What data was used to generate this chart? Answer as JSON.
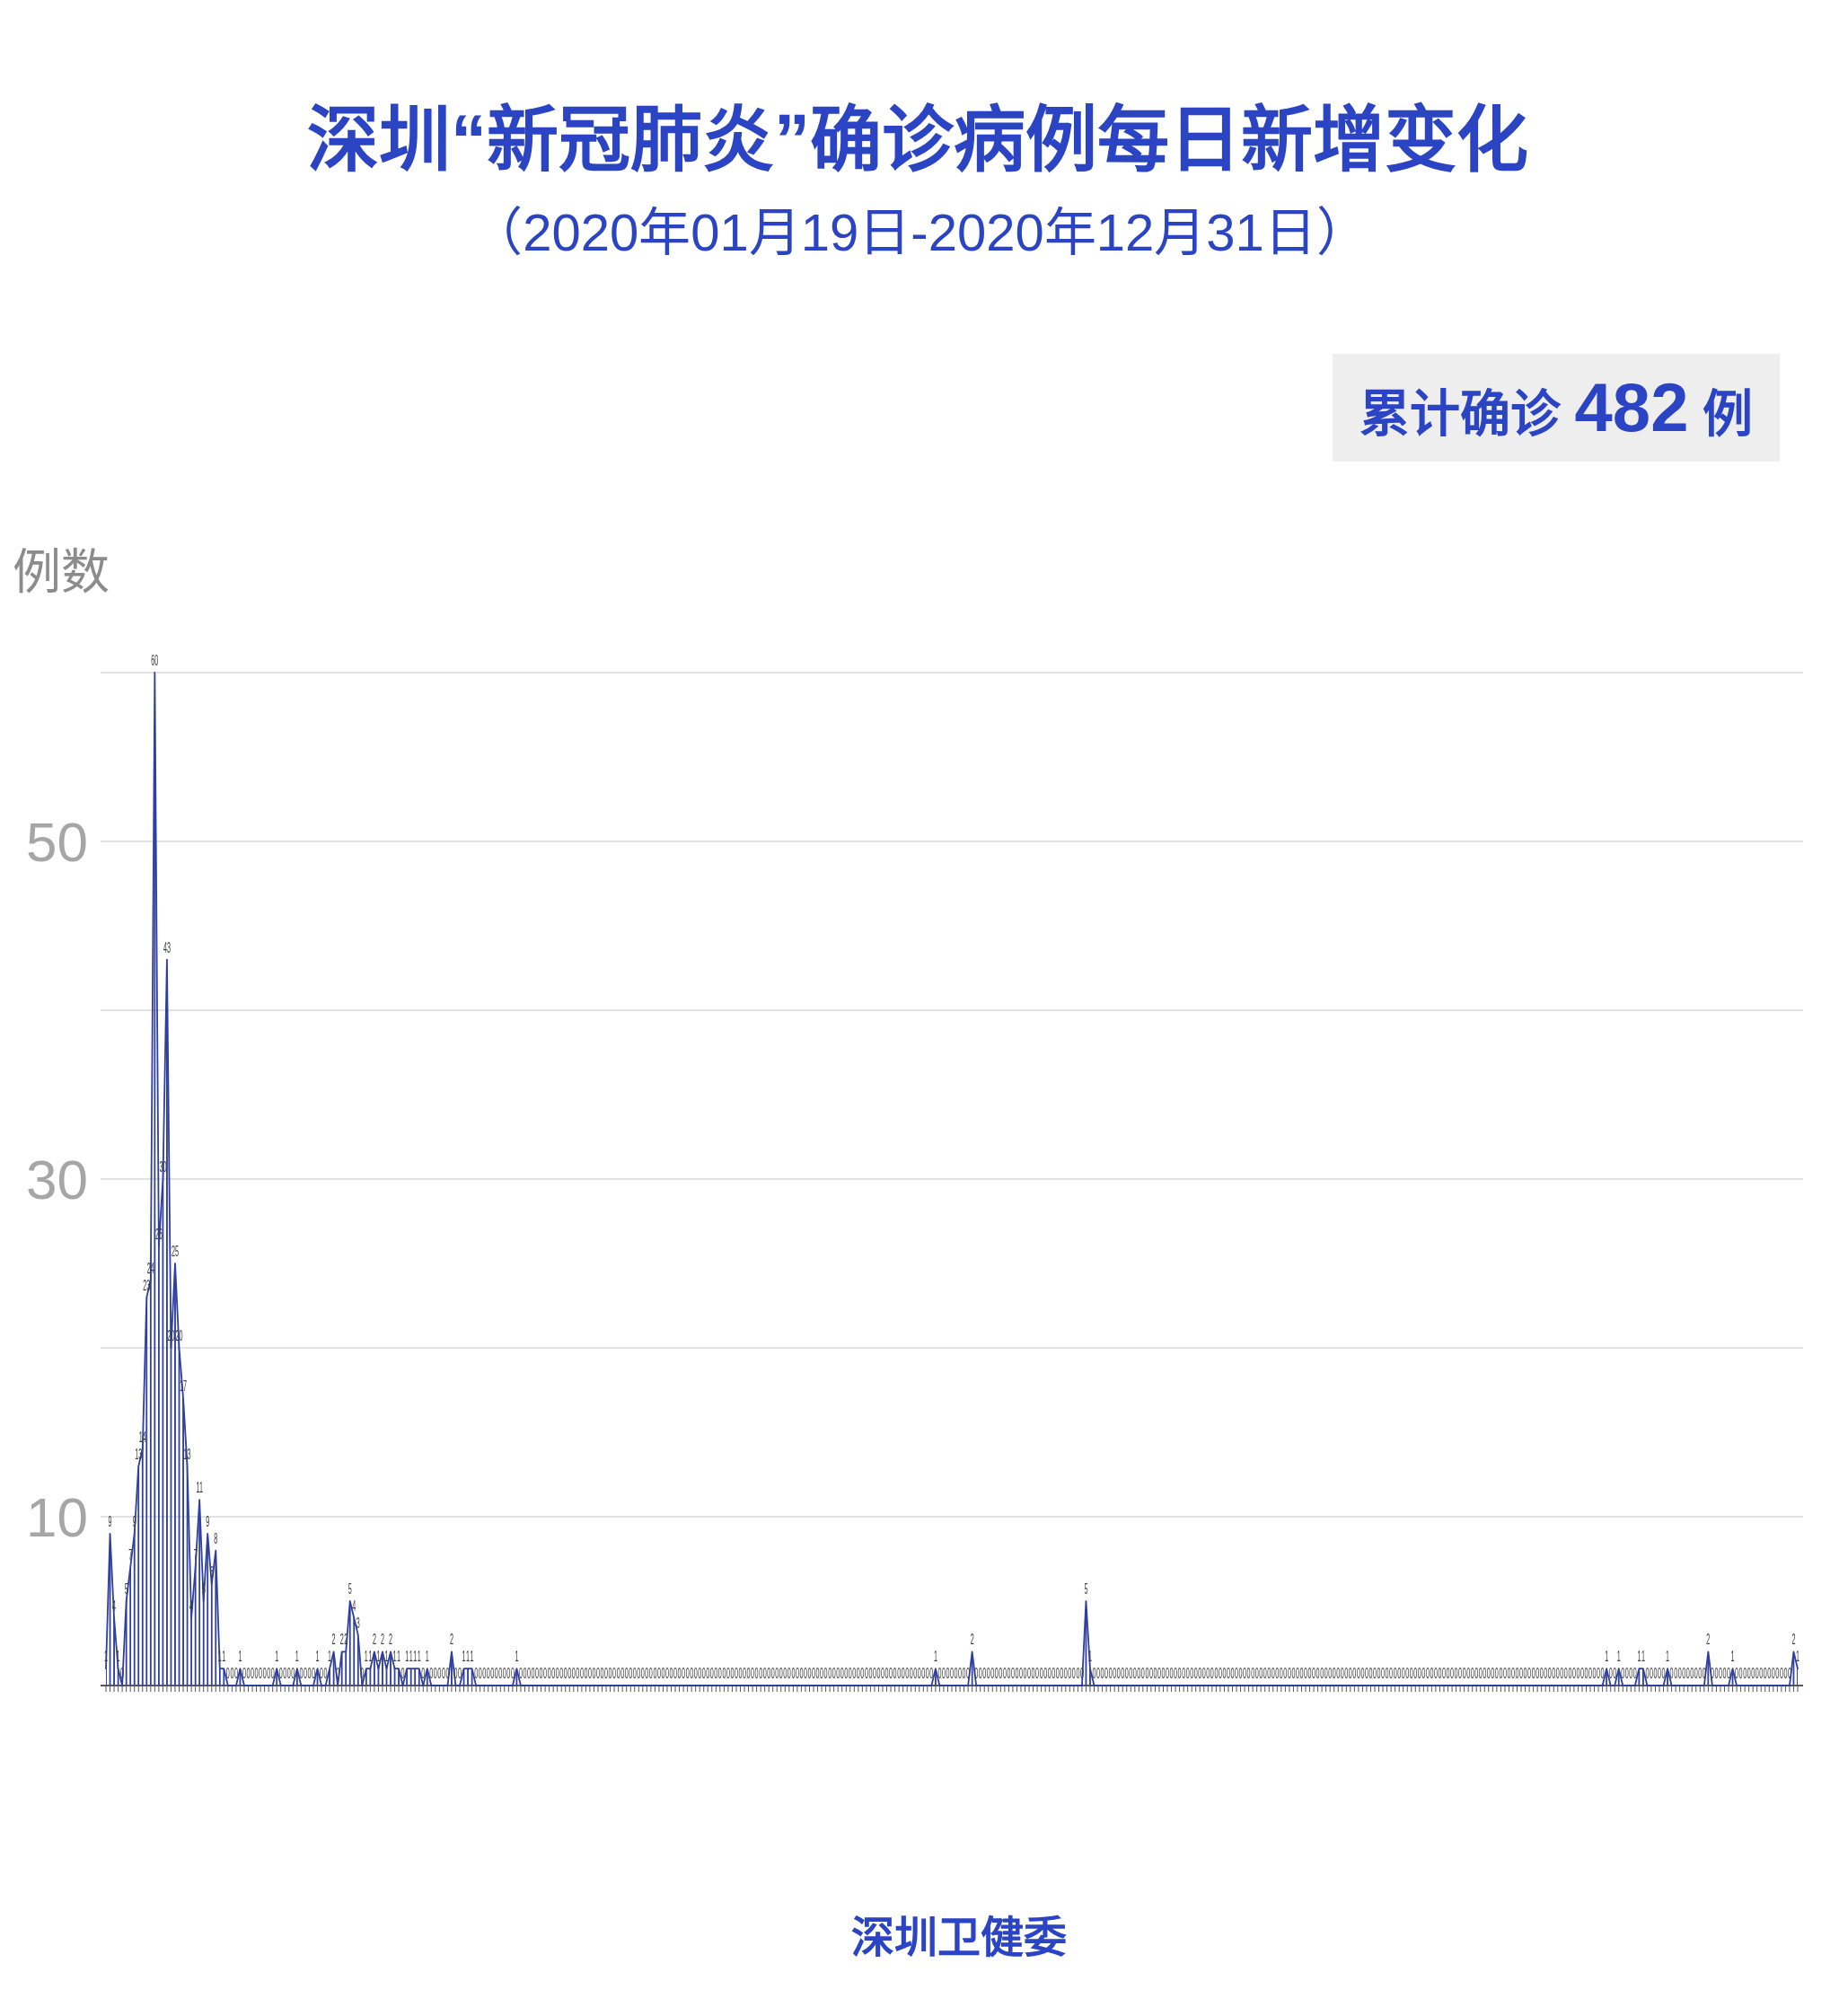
{
  "chart_data": {
    "type": "area",
    "title": "深圳“新冠肺炎”确诊病例每日新增变化",
    "subtitle": "（2020年01月19日-2020年12月31日）",
    "ylabel": "例数",
    "annotations": [
      "累计确诊 482 例",
      "深圳卫健委"
    ],
    "categories": [
      null,
      null,
      null,
      null,
      null,
      null,
      null,
      null,
      null,
      null,
      null,
      null,
      null,
      null,
      null,
      null,
      null,
      null,
      null,
      null,
      null,
      null,
      null,
      null,
      null,
      null,
      null,
      null,
      null,
      null,
      null,
      null,
      null,
      null,
      null,
      null,
      null,
      null,
      null,
      null,
      null,
      null,
      null,
      null,
      null,
      null,
      null,
      null,
      null,
      null,
      null,
      null,
      null,
      null,
      null,
      null,
      null,
      null,
      null,
      null,
      null,
      null,
      null,
      null,
      null,
      null,
      null,
      null,
      null,
      null,
      null,
      null,
      null,
      null,
      null,
      null,
      null,
      null,
      null,
      null,
      null,
      null,
      null,
      null,
      null,
      null,
      null,
      null,
      null,
      null,
      null,
      null,
      null,
      null,
      null,
      null,
      null,
      null,
      null,
      null,
      null,
      null,
      null,
      null,
      null,
      null,
      null,
      null,
      null,
      null,
      null,
      null,
      null,
      null,
      null,
      null,
      null,
      null,
      null,
      null,
      null,
      null,
      null,
      null,
      null,
      null,
      null,
      null,
      null,
      null,
      null,
      null,
      null,
      null,
      null,
      null,
      null,
      null,
      null,
      null,
      null,
      null,
      null,
      null,
      null,
      null,
      null,
      null,
      null,
      null,
      null,
      null,
      null,
      null,
      null,
      null,
      null,
      null,
      null,
      null,
      null,
      null,
      null,
      null,
      null,
      null,
      null,
      null,
      null,
      null,
      null,
      null,
      null,
      null,
      null,
      null,
      null,
      null,
      null,
      null,
      null,
      null,
      null,
      null,
      null,
      null,
      null,
      null,
      null,
      null,
      null,
      null,
      null,
      null,
      null,
      null,
      null,
      null,
      null,
      null,
      null,
      null,
      null,
      null,
      null,
      null,
      null,
      null,
      null,
      null,
      null,
      null,
      null,
      null,
      null,
      null,
      null,
      null,
      null,
      null,
      null,
      null,
      null,
      null,
      null,
      null,
      null,
      null,
      null,
      null,
      null,
      null,
      null,
      null,
      null,
      null,
      null,
      null,
      null,
      null,
      null,
      null,
      null,
      null,
      null,
      null,
      null,
      null,
      null,
      null,
      null,
      null,
      null,
      null,
      null,
      null,
      null,
      null,
      null,
      null,
      null,
      null,
      null,
      null,
      null,
      null,
      null,
      null,
      null,
      null,
      null,
      null,
      null,
      null,
      null,
      null,
      null,
      null,
      null,
      null,
      null,
      null,
      null,
      null,
      null,
      null,
      null,
      null,
      null,
      null,
      null,
      null,
      null,
      null,
      null,
      null,
      null,
      null,
      null,
      null,
      null,
      null,
      null,
      null,
      null,
      null,
      null,
      null,
      null,
      null,
      null,
      null,
      null,
      null,
      null,
      null,
      null,
      null,
      null,
      null,
      null,
      null,
      null,
      null,
      null,
      null,
      null,
      null,
      null,
      null,
      null,
      null,
      null,
      null,
      null,
      null,
      null,
      null,
      null,
      null,
      null,
      null,
      null,
      null,
      null,
      null,
      null,
      null,
      null,
      null,
      null,
      null,
      null,
      null,
      null,
      null,
      null,
      null,
      null,
      null,
      null,
      null,
      null,
      null,
      null,
      null,
      null,
      null,
      null,
      null,
      null,
      null,
      null,
      null,
      null,
      null,
      null,
      null,
      null,
      null,
      null,
      null,
      null,
      null,
      null,
      null,
      null,
      null,
      null,
      null,
      null,
      null,
      null,
      null,
      null,
      null,
      null,
      null,
      null,
      null,
      null,
      null,
      null,
      null,
      null,
      null,
      null,
      null,
      null,
      null,
      null,
      null,
      null,
      null,
      null,
      null,
      null
    ],
    "series": [
      {
        "color": "#2f3f9f",
        "values": [
          1,
          9,
          4,
          1,
          0,
          5,
          7,
          9,
          13,
          14,
          23,
          24,
          60,
          26,
          30,
          43,
          20,
          25,
          20,
          17,
          13,
          4,
          7,
          11,
          5,
          9,
          6,
          8,
          1,
          1,
          0,
          0,
          0,
          1,
          0,
          0,
          0,
          0,
          0,
          0,
          0,
          0,
          1,
          0,
          0,
          0,
          0,
          1,
          0,
          0,
          0,
          0,
          1,
          0,
          0,
          1,
          2,
          0,
          2,
          2,
          5,
          4,
          3,
          0,
          1,
          1,
          2,
          1,
          2,
          1,
          2,
          1,
          1,
          0,
          1,
          1,
          1,
          1,
          0,
          1,
          0,
          0,
          0,
          0,
          0,
          2,
          0,
          0,
          1,
          1,
          1,
          0,
          0,
          0,
          0,
          0,
          0,
          0,
          0,
          0,
          0,
          1,
          0,
          0,
          0,
          0,
          0,
          0,
          0,
          0,
          0,
          0,
          0,
          0,
          0,
          0,
          0,
          0,
          0,
          0,
          0,
          0,
          0,
          0,
          0,
          0,
          0,
          0,
          0,
          0,
          0,
          0,
          0,
          0,
          0,
          0,
          0,
          0,
          0,
          0,
          0,
          0,
          0,
          0,
          0,
          0,
          0,
          0,
          0,
          0,
          0,
          0,
          0,
          0,
          0,
          0,
          0,
          0,
          0,
          0,
          0,
          0,
          0,
          0,
          0,
          0,
          0,
          0,
          0,
          0,
          0,
          0,
          0,
          0,
          0,
          0,
          0,
          0,
          0,
          0,
          0,
          0,
          0,
          0,
          0,
          0,
          0,
          0,
          0,
          0,
          0,
          0,
          0,
          0,
          0,
          0,
          0,
          0,
          0,
          0,
          0,
          0,
          0,
          0,
          1,
          0,
          0,
          0,
          0,
          0,
          0,
          0,
          0,
          2,
          0,
          0,
          0,
          0,
          0,
          0,
          0,
          0,
          0,
          0,
          0,
          0,
          0,
          0,
          0,
          0,
          0,
          0,
          0,
          0,
          0,
          0,
          0,
          0,
          0,
          0,
          0,
          5,
          1,
          0,
          0,
          0,
          0,
          0,
          0,
          0,
          0,
          0,
          0,
          0,
          0,
          0,
          0,
          0,
          0,
          0,
          0,
          0,
          0,
          0,
          0,
          0,
          0,
          0,
          0,
          0,
          0,
          0,
          0,
          0,
          0,
          0,
          0,
          0,
          0,
          0,
          0,
          0,
          0,
          0,
          0,
          0,
          0,
          0,
          0,
          0,
          0,
          0,
          0,
          0,
          0,
          0,
          0,
          0,
          0,
          0,
          0,
          0,
          0,
          0,
          0,
          0,
          0,
          0,
          0,
          0,
          0,
          0,
          0,
          0,
          0,
          0,
          0,
          0,
          0,
          0,
          0,
          0,
          0,
          0,
          0,
          0,
          0,
          0,
          0,
          0,
          0,
          0,
          0,
          0,
          0,
          0,
          0,
          0,
          0,
          0,
          0,
          0,
          0,
          0,
          0,
          0,
          0,
          0,
          0,
          0,
          0,
          0,
          0,
          0,
          0,
          0,
          0,
          0,
          0,
          0,
          0,
          0,
          0,
          0,
          0,
          0,
          0,
          0,
          0,
          1,
          0,
          0,
          1,
          0,
          0,
          0,
          0,
          1,
          1,
          0,
          0,
          0,
          0,
          0,
          1,
          0,
          0,
          0,
          0,
          0,
          0,
          0,
          0,
          0,
          2,
          0,
          0,
          0,
          0,
          0,
          1,
          0,
          0,
          0,
          0,
          0,
          0,
          0,
          0,
          0,
          0,
          0,
          0,
          0,
          0,
          2,
          1
        ]
      }
    ],
    "ylim": [
      0,
      60
    ],
    "yticks": [
      {
        "value": 0,
        "label": null
      },
      10,
      {
        "value": 20,
        "label": null
      },
      30,
      {
        "value": 40,
        "label": null
      },
      50,
      {
        "value": 60,
        "label": null
      }
    ],
    "grid": "y",
    "data_labels": true
  }
}
